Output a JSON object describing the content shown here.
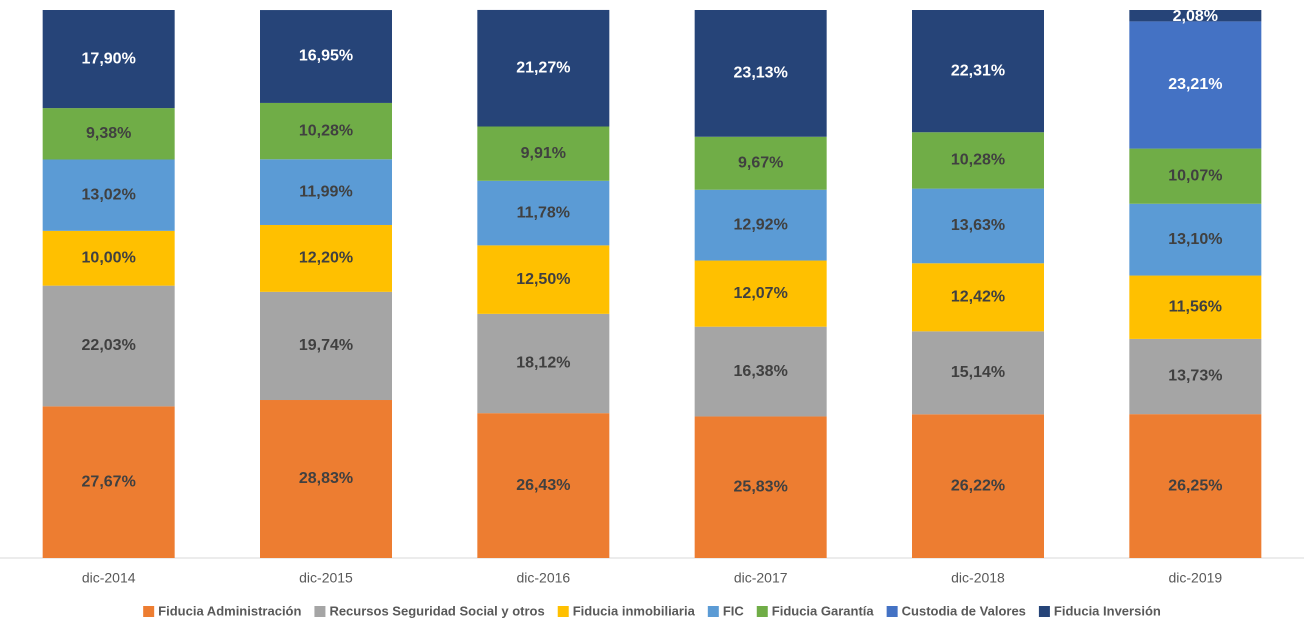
{
  "chart_data": {
    "type": "stacked_bar",
    "categories": [
      "dic-2014",
      "dic-2015",
      "dic-2016",
      "dic-2017",
      "dic-2018",
      "dic-2019"
    ],
    "ylim": [
      0,
      100
    ],
    "series": [
      {
        "name": "Fiducia Administración",
        "color": "#ED7D31",
        "values": [
          27.67,
          28.83,
          26.43,
          25.83,
          26.22,
          26.25
        ],
        "value_labels": [
          "27,67%",
          "28,83%",
          "26,43%",
          "25,83%",
          "26,22%",
          "26,25%"
        ]
      },
      {
        "name": "Recursos Seguridad Social y otros",
        "color": "#A5A5A5",
        "values": [
          22.03,
          19.74,
          18.12,
          16.38,
          15.14,
          13.73
        ],
        "value_labels": [
          "22,03%",
          "19,74%",
          "18,12%",
          "16,38%",
          "15,14%",
          "13,73%"
        ]
      },
      {
        "name": "Fiducia inmobiliaria",
        "color": "#FFC000",
        "values": [
          10.0,
          12.2,
          12.5,
          12.07,
          12.42,
          11.56
        ],
        "value_labels": [
          "10,00%",
          "12,20%",
          "12,50%",
          "12,07%",
          "12,42%",
          "11,56%"
        ]
      },
      {
        "name": "FIC",
        "color": "#5B9BD5",
        "values": [
          13.02,
          11.99,
          11.78,
          12.92,
          13.63,
          13.1
        ],
        "value_labels": [
          "13,02%",
          "11,99%",
          "11,78%",
          "12,92%",
          "13,63%",
          "13,10%"
        ]
      },
      {
        "name": "Fiducia Garantía",
        "color": "#70AD47",
        "values": [
          9.38,
          10.28,
          9.91,
          9.67,
          10.28,
          10.07
        ],
        "value_labels": [
          "9,38%",
          "10,28%",
          "9,91%",
          "9,67%",
          "10,28%",
          "10,07%"
        ]
      },
      {
        "name": "Custodia de Valores",
        "color": "#4472C4",
        "values": [
          null,
          null,
          null,
          null,
          null,
          23.21
        ],
        "value_labels": [
          null,
          null,
          null,
          null,
          null,
          "23,21%"
        ]
      },
      {
        "name": "Fiducia Inversión",
        "color": "#264478",
        "values": [
          17.9,
          16.95,
          21.27,
          23.13,
          22.31,
          2.08
        ],
        "value_labels": [
          "17,90%",
          "16,95%",
          "21,27%",
          "23,13%",
          "22,31%",
          "2,08%"
        ]
      }
    ],
    "legend": "bottom"
  }
}
